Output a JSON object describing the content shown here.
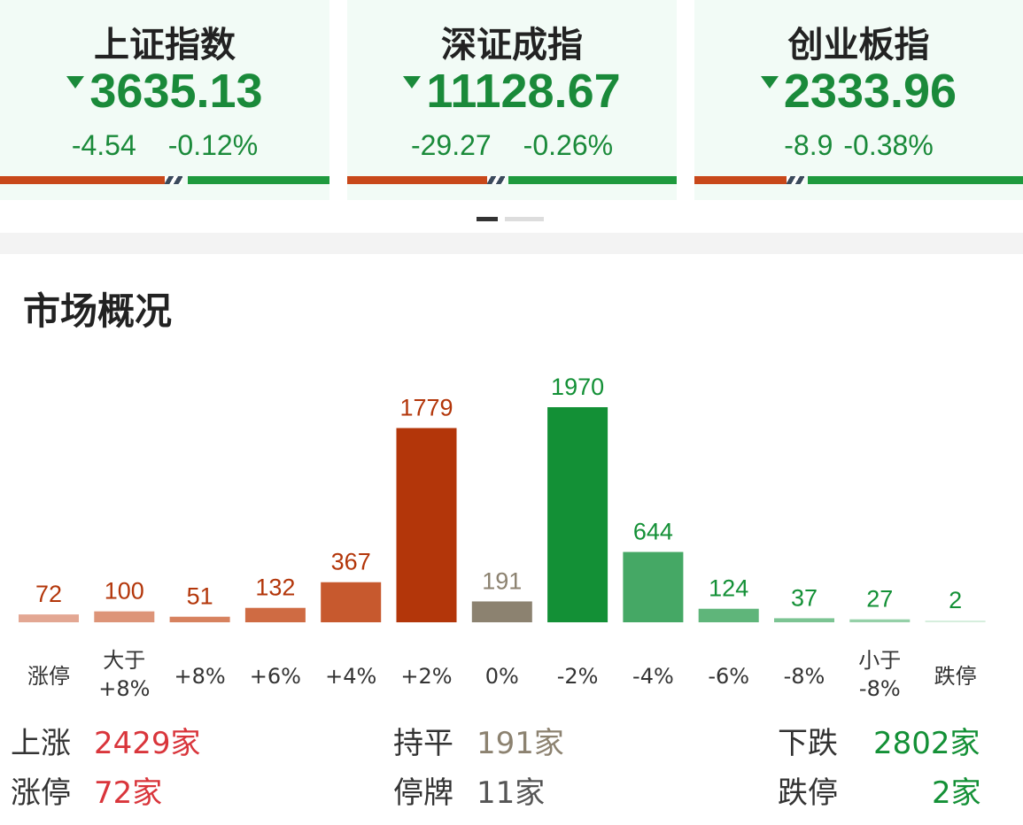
{
  "indices": [
    {
      "name": "上证指数",
      "value": "3635.13",
      "change": "-4.54",
      "change_pct": "-0.12%",
      "up_ratio": 0.5
    },
    {
      "name": "深证成指",
      "value": "11128.67",
      "change": "-29.27",
      "change_pct": "-0.26%",
      "up_ratio": 0.43
    },
    {
      "name": "创业板指",
      "value": "2333.96",
      "change": "-8.9",
      "change_pct": "-0.38%",
      "up_ratio": 0.28
    }
  ],
  "colors": {
    "up": "#c8481a",
    "down": "#1f9a3e",
    "flat": "#8c8270"
  },
  "section_title": "市场概况",
  "chart_data": {
    "type": "bar",
    "categories": [
      "涨停",
      "大于\n+8%",
      "+8%",
      "+6%",
      "+4%",
      "+2%",
      "0%",
      "-2%",
      "-4%",
      "-6%",
      "-8%",
      "小于\n-8%",
      "跌停"
    ],
    "values": [
      72,
      100,
      51,
      132,
      367,
      1779,
      191,
      1970,
      644,
      124,
      37,
      27,
      2
    ],
    "bar_colors": [
      "#e3a793",
      "#dd9478",
      "#d7825f",
      "#cf6b43",
      "#c7592e",
      "#b3360a",
      "#8c8270",
      "#139036",
      "#45a865",
      "#5fb57a",
      "#7cc493",
      "#95d0a8",
      "#d6eedd"
    ],
    "label_colors": [
      "#b3360a",
      "#b3360a",
      "#b3360a",
      "#b3360a",
      "#b3360a",
      "#b3360a",
      "#8c8270",
      "#139036",
      "#139036",
      "#139036",
      "#139036",
      "#139036",
      "#139036"
    ],
    "ylim": [
      0,
      2000
    ]
  },
  "summary": {
    "up": {
      "label": "上涨",
      "value": "2429家"
    },
    "limit_up": {
      "label": "涨停",
      "value": "72家"
    },
    "flat": {
      "label": "持平",
      "value": "191家"
    },
    "suspended": {
      "label": "停牌",
      "value": "11家"
    },
    "down": {
      "label": "下跌",
      "value": "2802家"
    },
    "limit_down": {
      "label": "跌停",
      "value": "2家"
    }
  }
}
